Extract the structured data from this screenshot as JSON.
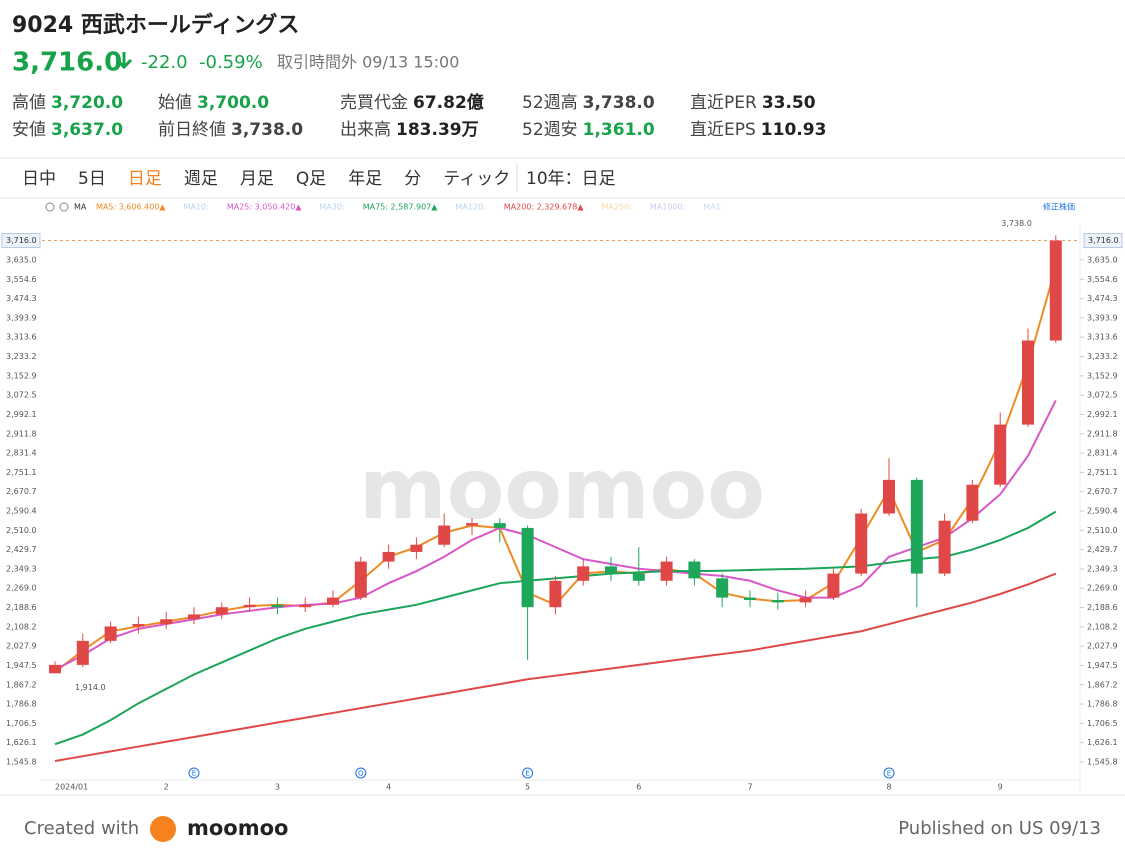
{
  "header": {
    "title": "9024 西武ホールディングス",
    "price": "3,716.0",
    "change": "-22.0",
    "change_pct": "-0.59%",
    "status": "取引時間外 09/13 15:00",
    "stats": [
      [
        {
          "label": "高値",
          "value": "3,720.0",
          "color": "#17a34a"
        },
        {
          "label": "始値",
          "value": "3,700.0",
          "color": "#17a34a"
        },
        {
          "label": "売買代金",
          "value": "67.82億",
          "color": "#222"
        },
        {
          "label": "52週高",
          "value": "3,738.0",
          "color": "#444"
        },
        {
          "label": "直近PER",
          "value": "33.50",
          "color": "#222"
        }
      ],
      [
        {
          "label": "安値",
          "value": "3,637.0",
          "color": "#17a34a"
        },
        {
          "label": "前日終値",
          "value": "3,738.0",
          "color": "#444"
        },
        {
          "label": "出来高",
          "value": "183.39万",
          "color": "#222"
        },
        {
          "label": "52週安",
          "value": "1,361.0",
          "color": "#17a34a"
        },
        {
          "label": "直近EPS",
          "value": "110.93",
          "color": "#222"
        }
      ]
    ]
  },
  "tabs": [
    "日中",
    "5日",
    "日足",
    "週足",
    "月足",
    "Q足",
    "年足",
    "分",
    "ティック"
  ],
  "active_tab": 2,
  "range_tab": "10年：日足",
  "chart_data": {
    "type": "candlestick",
    "legend_title": "MA",
    "adjust_label": "修正株価",
    "watermark": "moomoo",
    "legend": [
      {
        "text": "MA5: 3,606.400▲",
        "color": "#f08a24"
      },
      {
        "text": "MA10:",
        "color": "#b9d3ee"
      },
      {
        "text": "MA25: 3,050.420▲",
        "color": "#d957c8"
      },
      {
        "text": "MA30:",
        "color": "#b9d3ee"
      },
      {
        "text": "MA75: 2,587.907▲",
        "color": "#1aa55a"
      },
      {
        "text": "MA120:",
        "color": "#b9d3ee"
      },
      {
        "text": "MA200: 2,329.678▲",
        "color": "#e04848"
      },
      {
        "text": "MA250:",
        "color": "#f3d9a0"
      },
      {
        "text": "MA1000:",
        "color": "#d8c4ee"
      },
      {
        "text": "MA1:",
        "color": "#c9d9ee"
      }
    ],
    "categories": [
      "2024/01",
      null,
      null,
      null,
      "2",
      null,
      null,
      null,
      "3",
      null,
      null,
      null,
      "4",
      null,
      null,
      null,
      null,
      "5",
      null,
      null,
      null,
      "6",
      null,
      null,
      null,
      "7",
      null,
      null,
      null,
      null,
      "8",
      null,
      null,
      null,
      "9",
      null,
      null
    ],
    "events": [
      null,
      null,
      null,
      null,
      null,
      "E",
      null,
      null,
      null,
      null,
      null,
      "Q",
      null,
      null,
      null,
      null,
      null,
      "E",
      null,
      null,
      null,
      null,
      null,
      null,
      null,
      null,
      null,
      null,
      null,
      null,
      "E",
      null,
      null,
      null,
      null,
      null,
      null
    ],
    "open": [
      1915,
      1950,
      2050,
      2110,
      2120,
      2140,
      2160,
      2190,
      2200,
      2190,
      2200,
      2230,
      2380,
      2420,
      2450,
      2530,
      2540,
      2520,
      2190,
      2300,
      2360,
      2330,
      2300,
      2380,
      2310,
      2230,
      2220,
      2210,
      2230,
      2330,
      2580,
      2720,
      2330,
      2550,
      2700,
      2950,
      3300
    ],
    "high": [
      1965,
      2080,
      2130,
      2150,
      2170,
      2190,
      2210,
      2230,
      2230,
      2230,
      2260,
      2400,
      2450,
      2480,
      2580,
      2560,
      2560,
      2530,
      2320,
      2390,
      2400,
      2440,
      2400,
      2390,
      2330,
      2260,
      2250,
      2260,
      2350,
      2600,
      2810,
      2730,
      2580,
      2720,
      3000,
      3350,
      3738
    ],
    "low": [
      1914,
      1940,
      2040,
      2080,
      2100,
      2120,
      2140,
      2170,
      2160,
      2170,
      2190,
      2220,
      2350,
      2390,
      2440,
      2490,
      2460,
      1970,
      2160,
      2280,
      2300,
      2280,
      2280,
      2280,
      2190,
      2190,
      2180,
      2190,
      2220,
      2320,
      2570,
      2190,
      2320,
      2540,
      2690,
      2940,
      3290
    ],
    "close": [
      1950,
      2050,
      2110,
      2120,
      2140,
      2160,
      2190,
      2200,
      2190,
      2200,
      2230,
      2380,
      2420,
      2450,
      2530,
      2540,
      2520,
      2190,
      2300,
      2360,
      2330,
      2300,
      2380,
      2310,
      2230,
      2220,
      2210,
      2230,
      2330,
      2580,
      2720,
      2330,
      2550,
      2700,
      2950,
      3300,
      3716
    ],
    "up_color": "#e04848",
    "down_color": "#1ea75a",
    "series": [
      {
        "color": "#f08a24",
        "values": [
          1920,
          2010,
          2090,
          2110,
          2130,
          2150,
          2175,
          2195,
          2200,
          2195,
          2210,
          2300,
          2400,
          2440,
          2500,
          2530,
          2520,
          2250,
          2200,
          2330,
          2340,
          2330,
          2350,
          2330,
          2250,
          2225,
          2215,
          2220,
          2290,
          2480,
          2680,
          2420,
          2470,
          2640,
          2880,
          3200,
          3606.4
        ]
      },
      {
        "color": "#d957c8",
        "values": [
          1930,
          1990,
          2060,
          2100,
          2120,
          2140,
          2160,
          2175,
          2190,
          2200,
          2205,
          2230,
          2290,
          2340,
          2400,
          2470,
          2520,
          2490,
          2440,
          2390,
          2370,
          2350,
          2340,
          2330,
          2320,
          2300,
          2260,
          2230,
          2230,
          2280,
          2400,
          2440,
          2480,
          2560,
          2660,
          2820,
          3050.42
        ]
      },
      {
        "color": "#1aa55a",
        "values": [
          1620,
          1660,
          1720,
          1790,
          1850,
          1910,
          1960,
          2010,
          2060,
          2100,
          2130,
          2160,
          2180,
          2200,
          2230,
          2260,
          2290,
          2300,
          2310,
          2320,
          2330,
          2335,
          2340,
          2340,
          2342,
          2345,
          2348,
          2350,
          2355,
          2360,
          2375,
          2390,
          2400,
          2430,
          2470,
          2520,
          2587.907
        ]
      },
      {
        "color": "#e04848",
        "values": [
          1550,
          1570,
          1590,
          1610,
          1630,
          1650,
          1670,
          1690,
          1710,
          1730,
          1750,
          1770,
          1790,
          1810,
          1830,
          1850,
          1870,
          1890,
          1905,
          1920,
          1935,
          1950,
          1965,
          1980,
          1995,
          2010,
          2030,
          2050,
          2070,
          2090,
          2120,
          2150,
          2180,
          2210,
          2245,
          2285,
          2329.678
        ]
      }
    ],
    "ylim": [
      1491.7,
      3759.9
    ],
    "yticks": [
      {
        "value": 1545.8,
        "label": "1,545.8"
      },
      {
        "value": 1626.1,
        "label": "1,626.1"
      },
      {
        "value": 1706.5,
        "label": "1,706.5"
      },
      {
        "value": 1786.8,
        "label": "1,786.8"
      },
      {
        "value": 1867.2,
        "label": "1,867.2"
      },
      {
        "value": 1947.5,
        "label": "1,947.5"
      },
      {
        "value": 2027.9,
        "label": "2,027.9"
      },
      {
        "value": 2108.2,
        "label": "2,108.2"
      },
      {
        "value": 2188.6,
        "label": "2,188.6"
      },
      {
        "value": 2269,
        "label": "2,269.0"
      },
      {
        "value": 2349.3,
        "label": "2,349.3"
      },
      {
        "value": 2429.7,
        "label": "2,429.7"
      },
      {
        "value": 2510,
        "label": "2,510.0"
      },
      {
        "value": 2590.4,
        "label": "2,590.4"
      },
      {
        "value": 2670.7,
        "label": "2,670.7"
      },
      {
        "value": 2751.1,
        "label": "2,751.1"
      },
      {
        "value": 2831.4,
        "label": "2,831.4"
      },
      {
        "value": 2911.8,
        "label": "2,911.8"
      },
      {
        "value": 2992.1,
        "label": "2,992.1"
      },
      {
        "value": 3072.5,
        "label": "3,072.5"
      },
      {
        "value": 3152.9,
        "label": "3,152.9"
      },
      {
        "value": 3233.2,
        "label": "3,233.2"
      },
      {
        "value": 3313.6,
        "label": "3,313.6"
      },
      {
        "value": 3393.9,
        "label": "3,393.9"
      },
      {
        "value": 3474.3,
        "label": "3,474.3"
      },
      {
        "value": 3554.6,
        "label": "3,554.6"
      },
      {
        "value": 3635,
        "label": "3,635.0"
      }
    ],
    "last_price": {
      "value": 3716,
      "label": "3,716.0"
    },
    "high_mark": {
      "value": 3738,
      "label": "3,738.0"
    },
    "low_mark": {
      "value": 1914,
      "label": "1,914.0"
    }
  },
  "footer": {
    "created": "Created with",
    "brand": "moomoo",
    "published": "Published on US 09/13"
  }
}
